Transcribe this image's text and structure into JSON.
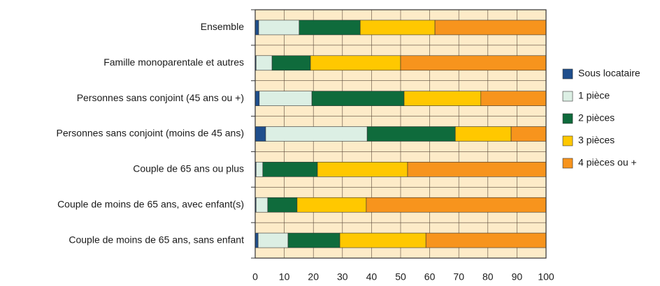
{
  "chart_data": {
    "type": "stacked_barh",
    "categories": [
      "Ensemble",
      "Famille monoparentale et autres",
      "Personnes sans conjoint (45 ans ou +)",
      "Personnes sans conjoint (moins de 45 ans)",
      "Couple de 65 ans ou plus",
      "Couple de moins de 65 ans, avec enfant(s)",
      "Couple de moins de 65 ans, sans enfant"
    ],
    "series": [
      {
        "name": "Sous locataire",
        "color": "#1f4e8c",
        "values": [
          1.2,
          0.3,
          1.4,
          3.6,
          0.3,
          0.3,
          1
        ]
      },
      {
        "name": "1 pièce",
        "color": "#dcefe4",
        "values": [
          13.9,
          5.5,
          18.1,
          34.9,
          2.3,
          4,
          10.3
        ]
      },
      {
        "name": "2 pièces",
        "color": "#0f6b3c",
        "values": [
          21,
          13.2,
          31.7,
          30.3,
          18.8,
          10.1,
          17.8
        ]
      },
      {
        "name": "3 pièces",
        "color": "#ffc800",
        "values": [
          25.7,
          31,
          26.4,
          19.2,
          31,
          23.8,
          29.6
        ]
      },
      {
        "name": "4 pièces ou +",
        "color": "#f7941d",
        "values": [
          38.2,
          50,
          22.4,
          12,
          47.6,
          61.8,
          41.3
        ]
      }
    ],
    "xlim": [
      0,
      100
    ],
    "xticks": [
      0,
      10,
      20,
      30,
      40,
      50,
      60,
      70,
      80,
      90,
      100
    ],
    "grid": true,
    "legend": "right"
  }
}
